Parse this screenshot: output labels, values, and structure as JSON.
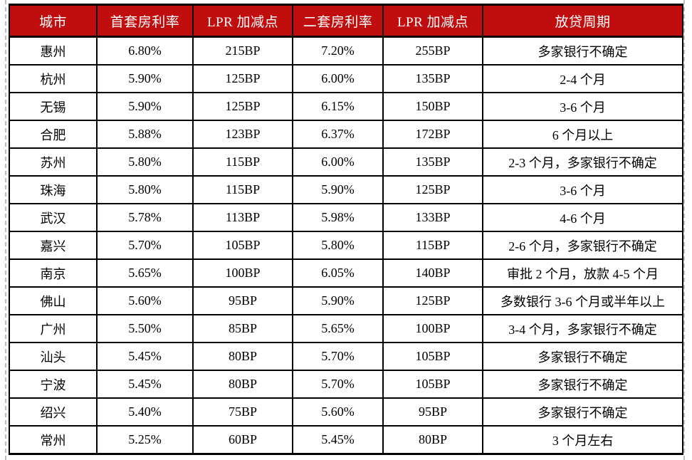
{
  "colors": {
    "header_bg": "#C00E0E",
    "header_text": "#FFFFFF",
    "body_text": "#000000",
    "grid": "#000000",
    "boundary_dash": "#BDBDBD"
  },
  "chart_data": {
    "type": "table",
    "columns": [
      "城市",
      "首套房利率",
      "LPR 加减点",
      "二套房利率",
      "LPR 加减点",
      "放贷周期"
    ],
    "column_keys": [
      "city",
      "first-home-rate",
      "first-lpr-points",
      "second-home-rate",
      "second-lpr-points",
      "lending-cycle"
    ],
    "rows": [
      [
        "惠州",
        "6.80%",
        "215BP",
        "7.20%",
        "255BP",
        "多家银行不确定"
      ],
      [
        "杭州",
        "5.90%",
        "125BP",
        "6.00%",
        "135BP",
        "2-4 个月"
      ],
      [
        "无锡",
        "5.90%",
        "125BP",
        "6.15%",
        "150BP",
        "3-6 个月"
      ],
      [
        "合肥",
        "5.88%",
        "123BP",
        "6.37%",
        "172BP",
        "6 个月以上"
      ],
      [
        "苏州",
        "5.80%",
        "115BP",
        "6.00%",
        "135BP",
        "2-3 个月，多家银行不确定"
      ],
      [
        "珠海",
        "5.80%",
        "115BP",
        "5.90%",
        "125BP",
        "3-6 个月"
      ],
      [
        "武汉",
        "5.78%",
        "113BP",
        "5.98%",
        "133BP",
        "4-6 个月"
      ],
      [
        "嘉兴",
        "5.70%",
        "105BP",
        "5.80%",
        "115BP",
        "2-6 个月，多家银行不确定"
      ],
      [
        "南京",
        "5.65%",
        "100BP",
        "6.05%",
        "140BP",
        "审批 2 个月，放款 4-5 个月"
      ],
      [
        "佛山",
        "5.60%",
        "95BP",
        "5.90%",
        "125BP",
        "多数银行 3-6 个月或半年以上"
      ],
      [
        "广州",
        "5.50%",
        "85BP",
        "5.65%",
        "100BP",
        "3-4 个月，多家银行不确定"
      ],
      [
        "汕头",
        "5.45%",
        "80BP",
        "5.70%",
        "105BP",
        "多家银行不确定"
      ],
      [
        "宁波",
        "5.45%",
        "80BP",
        "5.70%",
        "105BP",
        "多家银行不确定"
      ],
      [
        "绍兴",
        "5.40%",
        "75BP",
        "5.60%",
        "95BP",
        "多家银行不确定"
      ],
      [
        "常州",
        "5.25%",
        "60BP",
        "5.45%",
        "80BP",
        "3 个月左右"
      ]
    ]
  }
}
